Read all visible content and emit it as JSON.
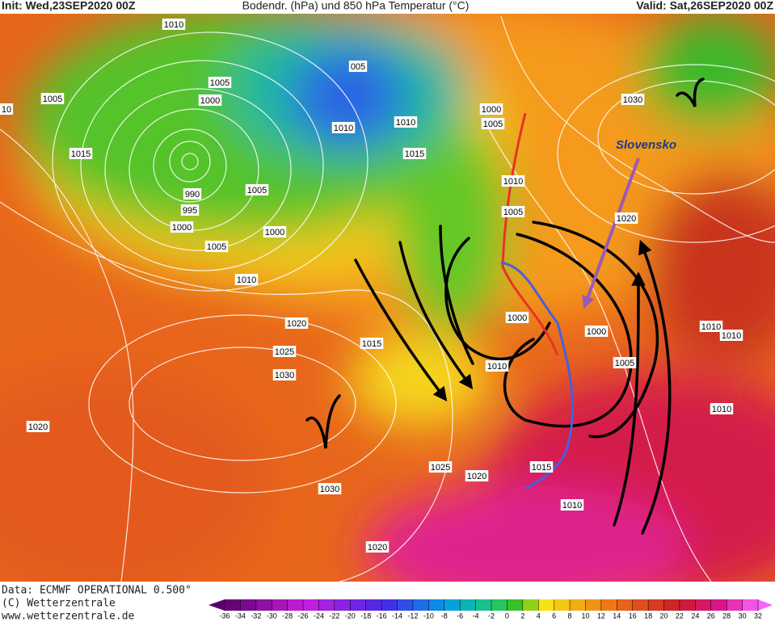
{
  "header": {
    "init": "Init: Wed,23SEP2020 00Z",
    "title": "Bodendr. (hPa) und 850 hPa Temperatur (°C)",
    "valid": "Valid: Sat,26SEP2020 00Z"
  },
  "annotation": "Slovensko",
  "isobar_labels": [
    1010,
    1005,
    1000,
    1005,
    10,
    1015,
    990,
    995,
    1000,
    1005,
    1000,
    1005,
    1010,
    "005",
    1010,
    1010,
    1015,
    1000,
    1005,
    1010,
    1005,
    1030,
    1020,
    1000,
    1000,
    1005,
    1010,
    1020,
    1025,
    1030,
    1015,
    1020,
    1025,
    1020,
    1015,
    1010,
    1030,
    1020,
    1010,
    1010,
    1010
  ],
  "footer": {
    "data": "Data: ECMWF OPERATIONAL 0.500°",
    "copyright": "(C) Wetterzentrale",
    "url": "www.wetterzentrale.de"
  },
  "colorbar": {
    "ticks": [
      -36,
      -34,
      -32,
      -30,
      -28,
      -26,
      -24,
      -22,
      -20,
      -18,
      -16,
      -14,
      -12,
      -10,
      -8,
      -6,
      -4,
      -2,
      0,
      2,
      4,
      6,
      8,
      10,
      12,
      14,
      16,
      18,
      20,
      22,
      24,
      26,
      28,
      30,
      32
    ]
  }
}
